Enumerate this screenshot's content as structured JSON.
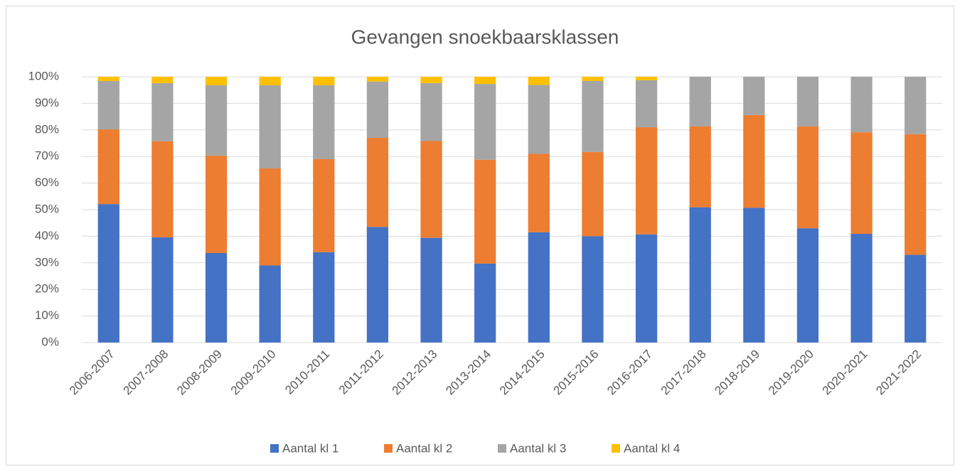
{
  "chart_data": {
    "type": "stacked_bar_100",
    "title": "Gevangen snoekbaarsklassen",
    "categories": [
      "2006-2007",
      "2007-2008",
      "2008-2009",
      "2009-2010",
      "2010-2011",
      "2011-2012",
      "2012-2013",
      "2013-2014",
      "2014-2015",
      "2015-2016",
      "2016-2017",
      "2017-2018",
      "2018-2019",
      "2019-2020",
      "2020-2021",
      "2021-2022"
    ],
    "series": [
      {
        "name": "Aantal kl 1",
        "color": "#4472c4",
        "values": [
          52.1,
          39.6,
          33.7,
          29.0,
          34.0,
          43.5,
          39.4,
          29.7,
          41.5,
          40.0,
          40.7,
          50.9,
          50.7,
          43.0,
          40.9,
          33.0
        ]
      },
      {
        "name": "Aantal kl 2",
        "color": "#ed7d31",
        "values": [
          28.1,
          36.1,
          36.6,
          36.5,
          35.0,
          33.5,
          36.4,
          39.1,
          29.5,
          31.7,
          40.3,
          30.4,
          34.9,
          38.3,
          38.2,
          45.4
        ]
      },
      {
        "name": "Aantal kl 3",
        "color": "#a5a5a5",
        "values": [
          18.2,
          21.9,
          26.5,
          31.3,
          27.8,
          21.2,
          21.8,
          28.5,
          25.9,
          26.7,
          17.7,
          18.7,
          14.4,
          18.7,
          20.9,
          21.6
        ]
      },
      {
        "name": "Aantal kl 4",
        "color": "#ffc000",
        "values": [
          1.6,
          2.4,
          3.2,
          3.2,
          3.2,
          1.8,
          2.4,
          2.7,
          3.1,
          1.6,
          1.3,
          0,
          0,
          0,
          0,
          0
        ]
      }
    ],
    "ylim": [
      0,
      100
    ],
    "yticks": [
      {
        "value": 0,
        "label": "0%"
      },
      {
        "value": 10,
        "label": "10%"
      },
      {
        "value": 20,
        "label": "20%"
      },
      {
        "value": 30,
        "label": "30%"
      },
      {
        "value": 40,
        "label": "40%"
      },
      {
        "value": 50,
        "label": "50%"
      },
      {
        "value": 60,
        "label": "60%"
      },
      {
        "value": 70,
        "label": "70%"
      },
      {
        "value": 80,
        "label": "80%"
      },
      {
        "value": 90,
        "label": "90%"
      },
      {
        "value": 100,
        "label": "100%"
      }
    ],
    "grid": true,
    "legend": "bottom"
  }
}
